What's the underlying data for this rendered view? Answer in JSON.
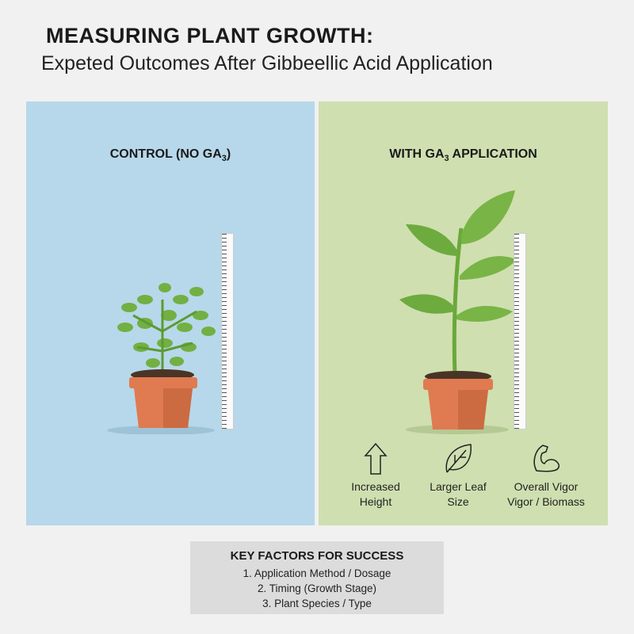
{
  "title": "MEASURING PLANT GROWTH:",
  "subtitle": "Expeted Outcomes After Gibbeellic Acid Application",
  "control": {
    "heading": "CONTROL (NO GA",
    "heading_sub": "3",
    "heading_end": ")"
  },
  "treated": {
    "heading": "WITH GA",
    "heading_sub": "3",
    "heading_end": " APPLICATION"
  },
  "benefits": [
    {
      "icon": "arrow-up-icon",
      "line1": "Increased",
      "line2": "Height"
    },
    {
      "icon": "leaf-icon",
      "line1": "Larger Leaf",
      "line2": "Size"
    },
    {
      "icon": "flexed-arm-icon",
      "line1": "Overall Vigor",
      "line2": "Vigor / Biomass"
    }
  ],
  "factors": {
    "heading": "KEY FACTORS FOR SUCCESS",
    "items": [
      "1. Application Method / Dosage",
      "2. Timing (Growth Stage)",
      "3. Plant Species / Type"
    ]
  },
  "colors": {
    "control_bg": "#b7d8ea",
    "treated_bg": "#cfdfb0",
    "pot": "#e07a50",
    "leaf": "#6fae3e"
  }
}
